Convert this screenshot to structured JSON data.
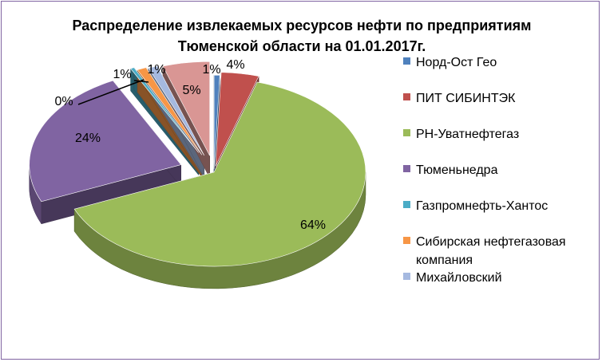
{
  "chart_data": {
    "type": "pie",
    "title_lines": [
      "Распределение извлекаемых ресурсов нефти по предприятиям",
      "Тюменской области на 01.01.2017г."
    ],
    "legend_position": "right",
    "slices": [
      {
        "name": "Норд-Ост Гео",
        "label": "1%",
        "value": 0.6,
        "color": "#4f81bd"
      },
      {
        "name": "ПИТ СИБИНТЭК",
        "label": "4%",
        "value": 4,
        "color": "#c0504d"
      },
      {
        "name": "РН-Уватнефтегаз",
        "label": "64%",
        "value": 64,
        "color": "#9bbb59"
      },
      {
        "name": "Тюменьнедра",
        "label": "24%",
        "value": 24,
        "color": "#8064a2"
      },
      {
        "name": "Газпромнефть-Хантос",
        "label": "0%",
        "value": 0.4,
        "color": "#4bacc6"
      },
      {
        "name": "Сибирская нефтегазовая компания",
        "label": "1%",
        "value": 1,
        "color": "#f79646"
      },
      {
        "name": "Михайловский",
        "label": "1%",
        "value": 1,
        "color": "#a5b9e0"
      },
      {
        "name": "",
        "label": "5%",
        "value": 5,
        "color": "#d99694"
      }
    ],
    "legend": [
      {
        "lines": [
          "Норд-Ост Гео"
        ],
        "color": "#4f81bd"
      },
      {
        "lines": [
          "ПИТ СИБИНТЭК"
        ],
        "color": "#c0504d"
      },
      {
        "lines": [
          "РН-Уватнефтегаз"
        ],
        "color": "#9bbb59"
      },
      {
        "lines": [
          "Тюменьнедра"
        ],
        "color": "#8064a2"
      },
      {
        "lines": [
          "Газпромнефть-Хантос"
        ],
        "color": "#4bacc6"
      },
      {
        "lines": [
          "Сибирская нефтегазовая",
          "компания"
        ],
        "color": "#f79646"
      },
      {
        "lines": [
          "Михайловский"
        ],
        "color": "#a5b9e0"
      }
    ]
  }
}
